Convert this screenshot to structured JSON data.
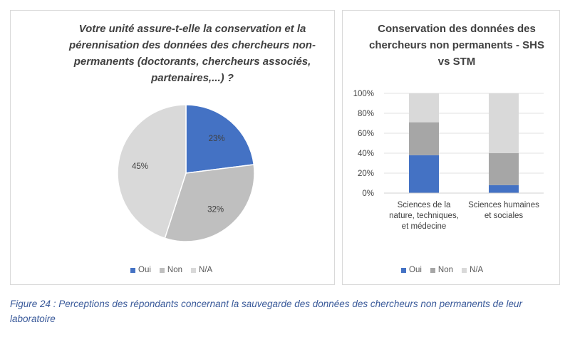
{
  "pie_chart": {
    "title": "Votre unité assure-t-elle la conservation et la pérennisation des données des chercheurs non-permanents (doctorants, chercheurs associés, partenaires,...) ?"
  },
  "bar_chart": {
    "title": "Conservation des données des chercheurs non permanents - SHS vs STM"
  },
  "caption": "Figure 24 : Perceptions des répondants concernant la sauvegarde des données des chercheurs non permanents de leur laboratoire",
  "chart_data": [
    {
      "type": "pie",
      "labels": [
        "Oui",
        "Non",
        "N/A"
      ],
      "values": [
        23,
        32,
        45
      ],
      "data_labels": [
        "23%",
        "32%",
        "45%"
      ],
      "colors": [
        "#4472c4",
        "#bfbfbf",
        "#d9d9d9"
      ],
      "legend": "bottom"
    },
    {
      "type": "bar",
      "stacked": true,
      "percent": true,
      "categories": [
        "Sciences de la nature, techniques, et médecine",
        "Sciences humaines et sociales"
      ],
      "series": [
        {
          "name": "Oui",
          "values": [
            38,
            8
          ],
          "color": "#4472c4"
        },
        {
          "name": "Non",
          "values": [
            33,
            32
          ],
          "color": "#a6a6a6"
        },
        {
          "name": "N/A",
          "values": [
            29,
            60
          ],
          "color": "#d9d9d9"
        }
      ],
      "yticks": [
        "0%",
        "20%",
        "40%",
        "60%",
        "80%",
        "100%"
      ],
      "ylim": [
        0,
        100
      ],
      "grid": true,
      "legend": "bottom"
    }
  ]
}
